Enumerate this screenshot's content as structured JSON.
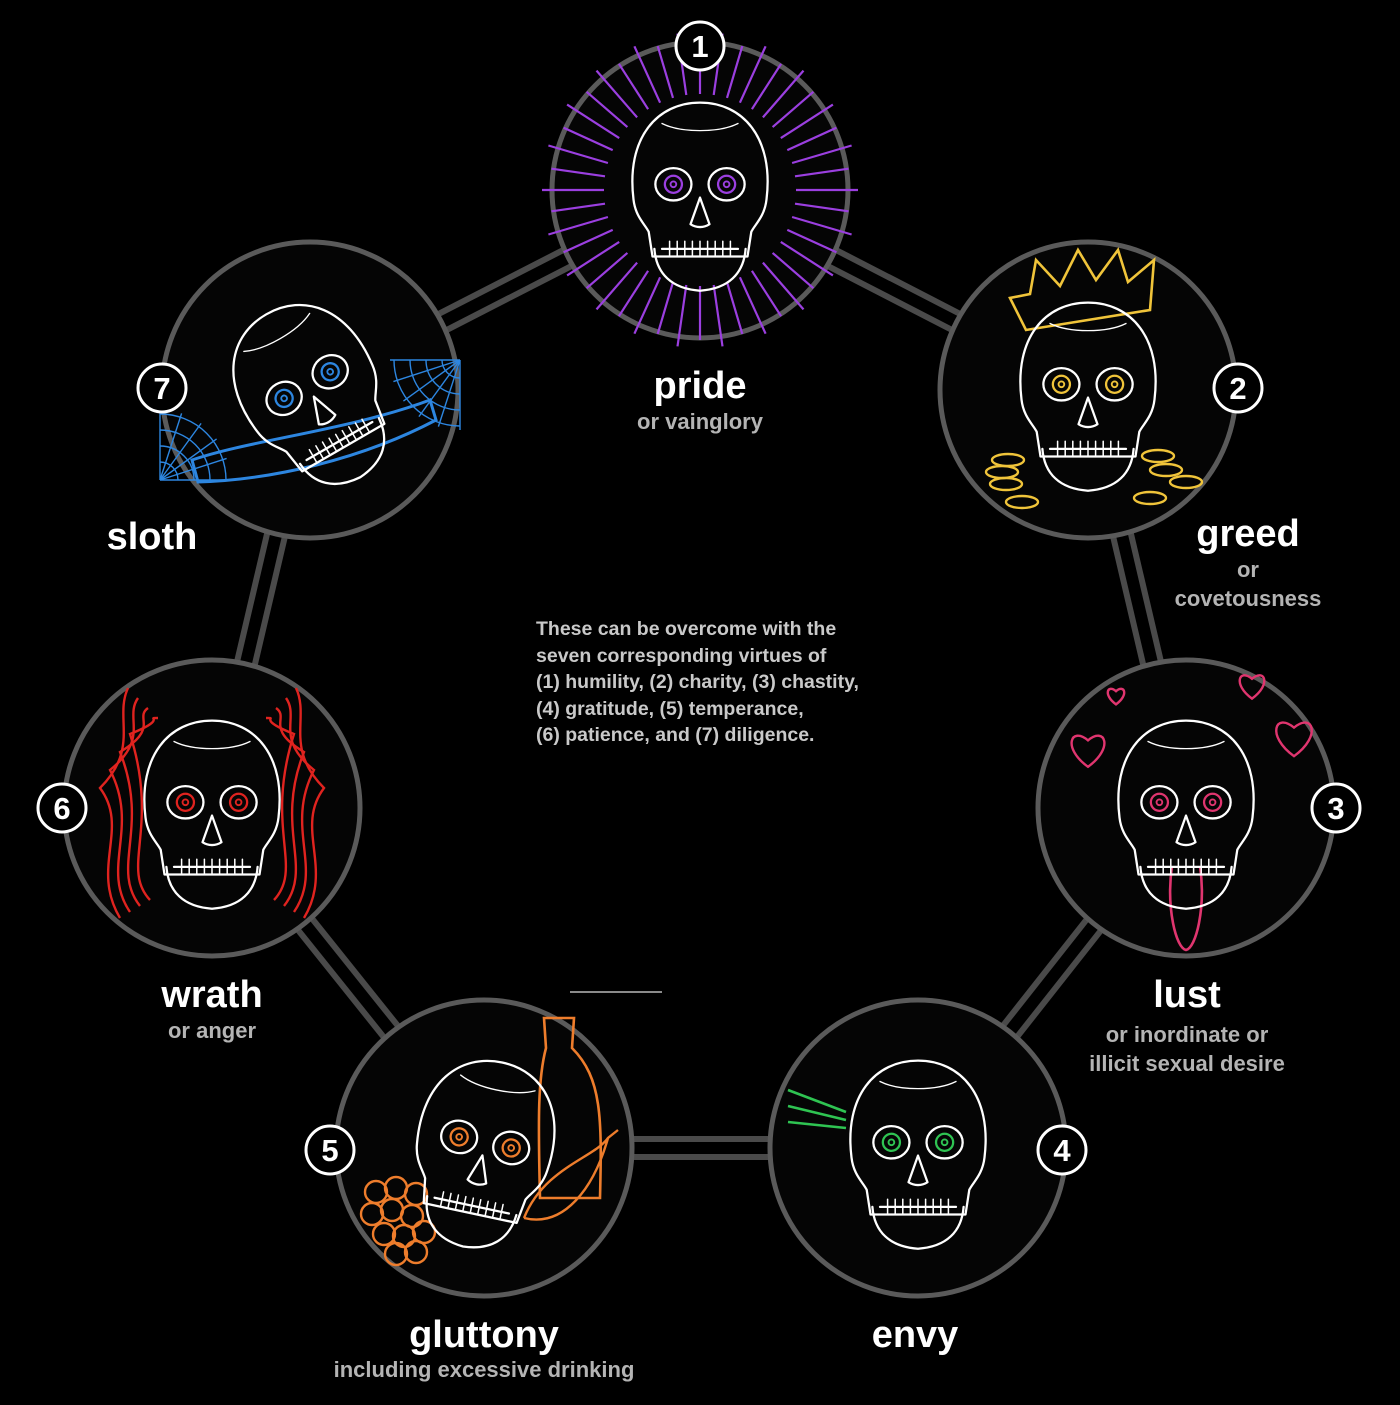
{
  "sins": [
    {
      "number": "1",
      "name": "pride",
      "subtitle": [
        "or vainglory"
      ],
      "accent": "#9b3fe0",
      "motif": "radiating-halo"
    },
    {
      "number": "2",
      "name": "greed",
      "subtitle": [
        "or",
        "covetousness"
      ],
      "accent": "#f0c43a",
      "motif": "crown-and-coins"
    },
    {
      "number": "3",
      "name": "lust",
      "subtitle": [
        "or inordinate or",
        "illicit sexual desire"
      ],
      "accent": "#e0356f",
      "motif": "hearts-and-tongue"
    },
    {
      "number": "4",
      "name": "envy",
      "subtitle": [],
      "accent": "#2fc452",
      "motif": "side-glance-lines"
    },
    {
      "number": "5",
      "name": "gluttony",
      "subtitle": [
        "including excessive drinking"
      ],
      "accent": "#ee7d2c",
      "motif": "bottle-grapes-drumstick"
    },
    {
      "number": "6",
      "name": "wrath",
      "subtitle": [
        "or anger"
      ],
      "accent": "#e0231f",
      "motif": "flames"
    },
    {
      "number": "7",
      "name": "sloth",
      "subtitle": [],
      "accent": "#2d86e0",
      "motif": "cobweb-and-pillow"
    }
  ],
  "virtues_note": [
    "These can be overcome with the",
    "seven corresponding virtues of",
    "(1) humility, (2) charity, (3) chastity,",
    "(4) gratitude, (5) temperance,",
    "(6) patience, and (7) diligence."
  ],
  "colors": {
    "background": "#000000",
    "ring": "#5a5a5a",
    "connector": "#4a4a4a",
    "skull_line": "#ffffff",
    "subtitle": "#b4b4b4"
  }
}
